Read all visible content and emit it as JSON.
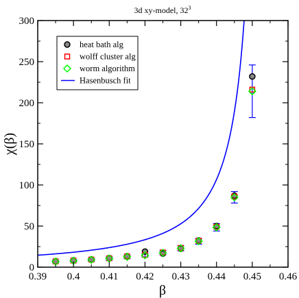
{
  "chart_data": {
    "type": "scatter",
    "title": "3d xy-model, 32",
    "title_superscript": "3",
    "xlabel": "β",
    "ylabel": "χ(β)",
    "xlim": [
      0.39,
      0.46
    ],
    "ylim": [
      0,
      300
    ],
    "x_ticks": [
      0.39,
      0.4,
      0.41,
      0.42,
      0.43,
      0.44,
      0.45,
      0.46
    ],
    "x_tick_labels": [
      "0.39",
      "0.4",
      "0.41",
      "0.42",
      "0.43",
      "0.44",
      "0.45",
      "0.46"
    ],
    "y_ticks": [
      0,
      50,
      100,
      150,
      200,
      250,
      300
    ],
    "y_tick_labels": [
      "0",
      "50",
      "100",
      "150",
      "200",
      "250",
      "300"
    ],
    "grid": false,
    "legend_position": "top-left",
    "series": [
      {
        "name": "heat bath alg",
        "marker": "circle",
        "color": "#000000",
        "fill": "#888888",
        "x": [
          0.395,
          0.4,
          0.405,
          0.41,
          0.415,
          0.42,
          0.425,
          0.43,
          0.435,
          0.44,
          0.445,
          0.45
        ],
        "y": [
          7.3,
          8.3,
          9.5,
          11.0,
          13.3,
          19.0,
          16.5,
          22.5,
          32.5,
          50.0,
          87.0,
          232.0
        ],
        "err": [
          0,
          0,
          0,
          0,
          0,
          0,
          0,
          0,
          0,
          0,
          0,
          0
        ]
      },
      {
        "name": "wolff cluster alg",
        "marker": "square",
        "color": "#ff0000",
        "x": [
          0.395,
          0.4,
          0.405,
          0.41,
          0.415,
          0.42,
          0.425,
          0.43,
          0.435,
          0.44,
          0.445,
          0.45
        ],
        "y": [
          7.0,
          8.0,
          9.2,
          10.8,
          13.0,
          15.0,
          18.0,
          23.5,
          32.0,
          49.0,
          86.0,
          216.0
        ],
        "err": [
          0,
          0,
          0,
          0,
          0,
          0,
          0,
          0,
          0,
          0,
          0,
          0
        ]
      },
      {
        "name": "worm algorithm",
        "marker": "diamond",
        "color": "#00ff00",
        "x": [
          0.395,
          0.4,
          0.405,
          0.41,
          0.415,
          0.42,
          0.425,
          0.43,
          0.435,
          0.44,
          0.445,
          0.45
        ],
        "y": [
          6.8,
          7.8,
          9.0,
          10.5,
          12.5,
          14.5,
          17.5,
          23.0,
          31.5,
          48.5,
          85.0,
          214.0
        ],
        "err": [
          1.5,
          1.5,
          1.5,
          2.0,
          2.0,
          2.0,
          2.5,
          3.0,
          3.5,
          4.5,
          7.0,
          32.0
        ]
      },
      {
        "name": "Hasenbusch fit",
        "marker": "line",
        "color": "#0000ff",
        "fit": {
          "amplitude": 1.1,
          "beta_c": 0.4542,
          "exponent": 1.32
        }
      }
    ]
  }
}
